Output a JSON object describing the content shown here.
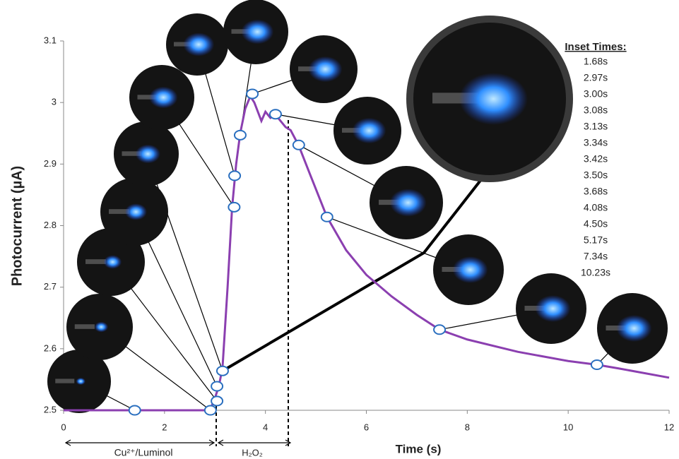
{
  "chart_data": {
    "type": "line",
    "ylabel": "Photocurrent (µA)",
    "xlabel": "Time (s)",
    "xlim": [
      0,
      12
    ],
    "xticks": [
      0,
      2,
      4,
      6,
      8,
      10,
      12
    ],
    "ylim": [
      2.5,
      3.1
    ],
    "yticks": [
      2.5,
      2.6,
      2.7,
      2.8,
      2.9,
      3,
      3.1
    ],
    "x": [
      0,
      1,
      2,
      2.9,
      3.0,
      3.08,
      3.15,
      3.25,
      3.34,
      3.42,
      3.5,
      3.6,
      3.7,
      3.78,
      3.85,
      3.92,
      4.0,
      4.1,
      4.2,
      4.3,
      4.4,
      4.5,
      4.66,
      4.9,
      5.22,
      5.6,
      6,
      6.5,
      7,
      7.45,
      8,
      9,
      10,
      10.57,
      11,
      12
    ],
    "series": [
      {
        "color": "#8b3fb0",
        "values": [
          2.5,
          2.5,
          2.5,
          2.5,
          2.52,
          2.54,
          2.57,
          2.7,
          2.83,
          2.9,
          2.95,
          2.99,
          3.01,
          3.0,
          2.985,
          2.97,
          2.985,
          2.975,
          2.98,
          2.97,
          2.96,
          2.955,
          2.93,
          2.88,
          2.814,
          2.76,
          2.72,
          2.685,
          2.655,
          2.631,
          2.615,
          2.595,
          2.58,
          2.574,
          2.568,
          2.553
        ]
      }
    ],
    "markers": {
      "x": [
        1.41,
        2.91,
        3.04,
        3.04,
        3.15,
        3.38,
        3.39,
        3.5,
        3.74,
        4.2,
        4.66,
        5.22,
        7.45,
        10.57
      ],
      "values": [
        2.5,
        2.5,
        2.515,
        2.539,
        2.564,
        2.83,
        2.881,
        2.947,
        3.014,
        2.981,
        2.931,
        2.814,
        2.631,
        2.574
      ]
    },
    "inset_title": "Inset Times:",
    "inset_times": [
      "1.68s",
      "2.97s",
      "3.00s",
      "3.08s",
      "3.13s",
      "3.34s",
      "3.42s",
      "3.50s",
      "3.68s",
      "4.08s",
      "4.50s",
      "5.17s",
      "7.34s",
      "10.23s"
    ],
    "annotations": [
      "Cu²⁺/Luminol",
      "H₂O₂"
    ]
  }
}
